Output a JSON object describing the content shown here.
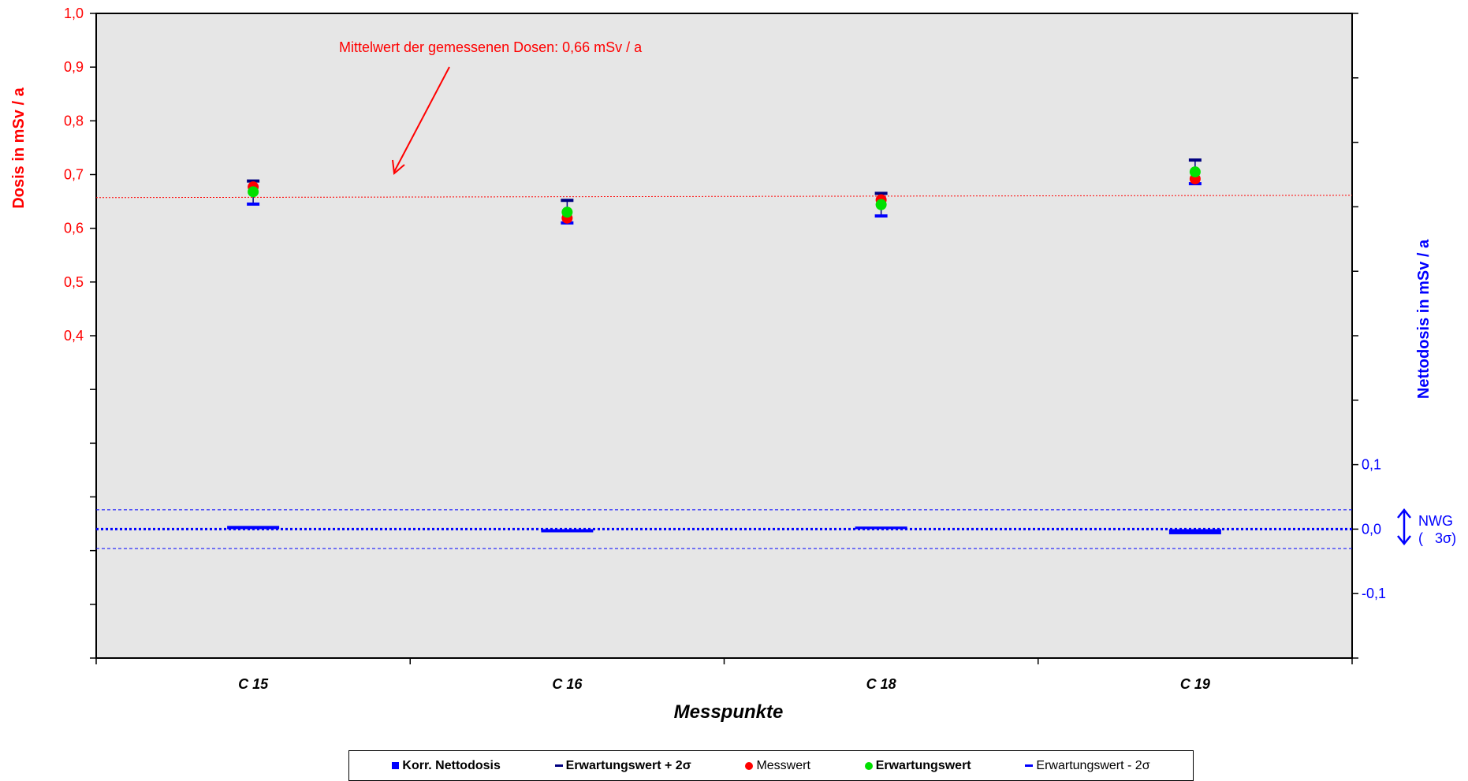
{
  "chart_data": {
    "type": "scatter",
    "categories": [
      "C 15",
      "C 16",
      "C 18",
      "C 19"
    ],
    "xlabel": "Messpunkte",
    "ylabel_left": "Dosis in mSv / a",
    "ylabel_right": "Nettodosis in mSv / a",
    "left_axis": {
      "ylim": [
        -0.2,
        1.0
      ],
      "tick_labels": [
        "1,0",
        "0,9",
        "0,8",
        "0,7",
        "0,6",
        "0,5",
        "0,4"
      ],
      "tick_values": [
        1.0,
        0.9,
        0.8,
        0.7,
        0.6,
        0.5,
        0.4
      ]
    },
    "right_axis": {
      "ylim": [
        -0.2,
        0.8
      ],
      "tick_labels": [
        "0,1",
        "0,0",
        "-0,1"
      ],
      "tick_values": [
        0.1,
        0.0,
        -0.1
      ]
    },
    "series": [
      {
        "name": "Korr. Nettodosis",
        "axis": "right",
        "color": "#0000ff",
        "values": [
          0.005,
          -0.005,
          0.004,
          -0.008
        ]
      },
      {
        "name": "Erwartungswert + 2σ",
        "axis": "left",
        "color": "#000080",
        "values": [
          0.688,
          0.652,
          0.665,
          0.727
        ]
      },
      {
        "name": "Messwert",
        "axis": "left",
        "color": "#ff0000",
        "values": [
          0.677,
          0.619,
          0.653,
          0.692
        ]
      },
      {
        "name": "Erwartungswert",
        "axis": "left",
        "color": "#00e000",
        "values": [
          0.668,
          0.63,
          0.644,
          0.705
        ]
      },
      {
        "name": "Erwartungswert - 2σ",
        "axis": "left",
        "color": "#0000ff",
        "values": [
          0.645,
          0.61,
          0.623,
          0.683
        ]
      }
    ],
    "mean_line": {
      "value": 0.66,
      "axis": "left",
      "color": "#ff0000"
    },
    "annotation": "Mittelwert der gemessenen Dosen: 0,66 mSv / a",
    "nwg": {
      "label_line1": "NWG",
      "label_line2": "(   3σ)",
      "upper": 0.03,
      "lower": -0.03,
      "baseline": 0.0
    },
    "grid": false,
    "plot_background": "#e6e6e6",
    "legend_position": "bottom"
  },
  "legend": [
    {
      "label": "Korr. Nettodosis",
      "color": "#0000ff",
      "shape": "square",
      "bold": true
    },
    {
      "label": "Erwartungswert + 2σ",
      "color": "#000080",
      "shape": "dash",
      "bold": true
    },
    {
      "label": "Messwert",
      "color": "#ff0000",
      "shape": "dot",
      "bold": false
    },
    {
      "label": "Erwartungswert",
      "color": "#00e000",
      "shape": "dot",
      "bold": true
    },
    {
      "label": "Erwartungswert - 2σ",
      "color": "#0000ff",
      "shape": "dash",
      "bold": false
    }
  ]
}
